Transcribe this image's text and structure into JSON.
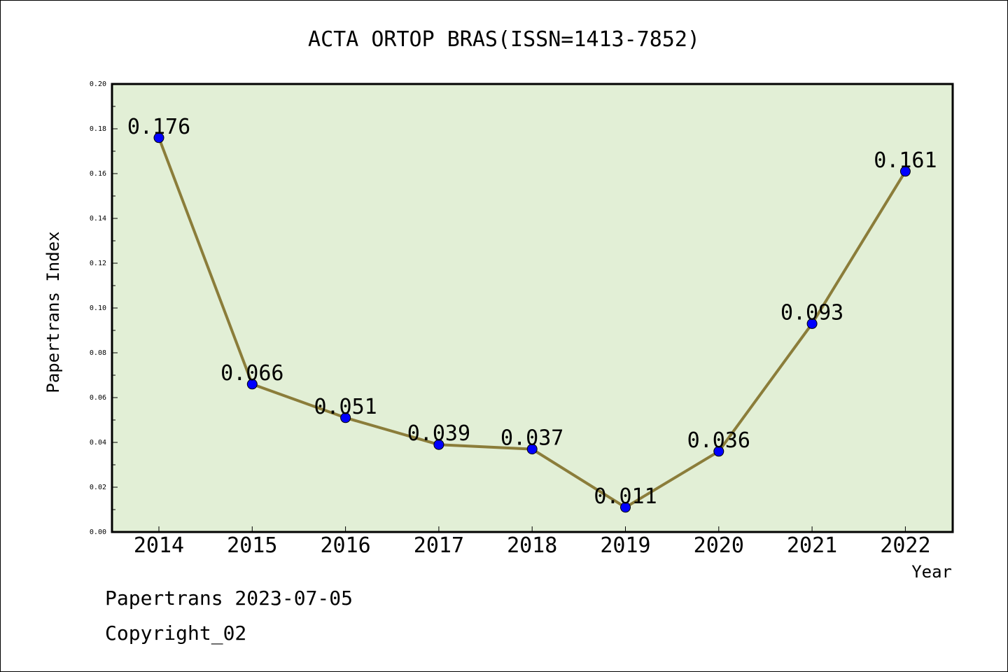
{
  "chart_data": {
    "type": "line",
    "title": "ACTA ORTOP BRAS(ISSN=1413-7852)",
    "xlabel": "Year",
    "ylabel": "Papertrans Index",
    "categories": [
      "2014",
      "2015",
      "2016",
      "2017",
      "2018",
      "2019",
      "2020",
      "2021",
      "2022"
    ],
    "values": [
      0.176,
      0.066,
      0.051,
      0.039,
      0.037,
      0.011,
      0.036,
      0.093,
      0.161
    ],
    "value_labels": [
      "0.176",
      "0.066",
      "0.051",
      "0.039",
      "0.037",
      "0.011",
      "0.036",
      "0.093",
      "0.161"
    ],
    "ylim": [
      0,
      0.2
    ],
    "yticks": [
      "0.00",
      "0.02",
      "0.04",
      "0.06",
      "0.08",
      "0.10",
      "0.12",
      "0.14",
      "0.16",
      "0.18",
      "0.20"
    ],
    "grid": false,
    "colors": {
      "plot_background": "#e2efd6",
      "line": "#8b7d3a",
      "marker": "#0000ff"
    }
  },
  "footer": {
    "date_line": "Papertrans 2023-07-05",
    "copyright": "Copyright_02"
  }
}
